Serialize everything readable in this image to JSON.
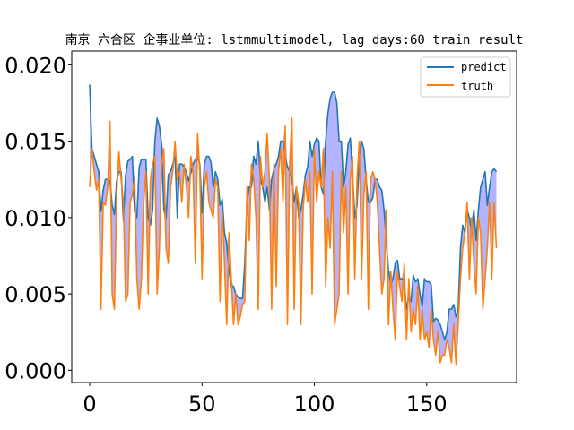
{
  "chart_data": {
    "type": "line",
    "title": "南京_六合区_企事业单位: lstmmultimodel, lag days:60 train_result",
    "xlabel": "",
    "ylabel": "",
    "xlim": [
      -8,
      190
    ],
    "ylim": [
      -0.0008,
      0.0209
    ],
    "x_ticks": [
      0,
      50,
      100,
      150
    ],
    "x_tick_labels": [
      "0",
      "50",
      "100",
      "150"
    ],
    "y_ticks": [
      0.0,
      0.005,
      0.01,
      0.015,
      0.02
    ],
    "y_tick_labels": [
      "0.000",
      "0.005",
      "0.010",
      "0.015",
      "0.020"
    ],
    "legend_position": "top-right",
    "band_color": "#8080ff",
    "series": [
      {
        "name": "predict",
        "color": "#1f77b4",
        "values": [
          0.0187,
          0.0145,
          0.014,
          0.0135,
          0.013,
          0.0104,
          0.0118,
          0.0125,
          0.0125,
          0.0124,
          0.0108,
          0.0102,
          0.0124,
          0.013,
          0.013,
          0.0098,
          0.0128,
          0.0137,
          0.0138,
          0.014,
          0.0104,
          0.01,
          0.0133,
          0.0138,
          0.0138,
          0.0138,
          0.01,
          0.0095,
          0.0105,
          0.015,
          0.0165,
          0.016,
          0.0148,
          0.0105,
          0.01,
          0.0128,
          0.013,
          0.0135,
          0.014,
          0.01,
          0.0135,
          0.0135,
          0.0133,
          0.013,
          0.0124,
          0.0129,
          0.0135,
          0.0138,
          0.014,
          0.0135,
          0.0103,
          0.0135,
          0.014,
          0.014,
          0.0136,
          0.012,
          0.013,
          0.0125,
          0.0108,
          0.0112,
          0.009,
          0.0083,
          0.0065,
          0.0055,
          0.0055,
          0.005,
          0.0048,
          0.0047,
          0.0047,
          0.007,
          0.011,
          0.012,
          0.012,
          0.014,
          0.0135,
          0.015,
          0.0125,
          0.012,
          0.011,
          0.012,
          0.0105,
          0.0125,
          0.0132,
          0.0135,
          0.014,
          0.015,
          0.015,
          0.014,
          0.0133,
          0.013,
          0.0125,
          0.011,
          0.012,
          0.01,
          0.0105,
          0.0115,
          0.0128,
          0.0133,
          0.015,
          0.014,
          0.0148,
          0.0152,
          0.015,
          0.012,
          0.0115,
          0.015,
          0.0168,
          0.0178,
          0.0182,
          0.0182,
          0.0175,
          0.015,
          0.015,
          0.012,
          0.013,
          0.0148,
          0.0152,
          0.0128,
          0.01,
          0.0108,
          0.014,
          0.015,
          0.0145,
          0.0125,
          0.011,
          0.011,
          0.0113,
          0.0125,
          0.0125,
          0.012,
          0.0118,
          0.0105,
          0.0085,
          0.0065,
          0.0056,
          0.006,
          0.007,
          0.0072,
          0.006,
          0.006,
          0.0058,
          0.004,
          0.0048,
          0.0045,
          0.0062,
          0.0058,
          0.006,
          0.005,
          0.0042,
          0.006,
          0.0058,
          0.0058,
          0.0056,
          0.0032,
          0.0034,
          0.0033,
          0.003,
          0.0025,
          0.002,
          0.0025,
          0.004,
          0.004,
          0.0043,
          0.0035,
          0.004,
          0.008,
          0.0095,
          0.009,
          0.0105,
          0.01,
          0.009,
          0.0105,
          0.0085,
          0.0105,
          0.012,
          0.0125,
          0.013,
          0.0108,
          0.012,
          0.013,
          0.0132,
          0.013
        ]
      },
      {
        "name": "truth",
        "color": "#ff7f0e",
        "values": [
          0.012,
          0.0145,
          0.013,
          0.0118,
          0.0125,
          0.004,
          0.011,
          0.0108,
          0.012,
          0.0163,
          0.005,
          0.004,
          0.0115,
          0.0143,
          0.0125,
          0.011,
          0.0045,
          0.005,
          0.011,
          0.0115,
          0.0125,
          0.006,
          0.004,
          0.006,
          0.011,
          0.013,
          0.005,
          0.0125,
          0.0135,
          0.014,
          0.005,
          0.008,
          0.0135,
          0.0145,
          0.008,
          0.007,
          0.012,
          0.013,
          0.015,
          0.0125,
          0.013,
          0.011,
          0.0135,
          0.012,
          0.01,
          0.014,
          0.013,
          0.007,
          0.0155,
          0.013,
          0.006,
          0.012,
          0.013,
          0.011,
          0.0105,
          0.01,
          0.0125,
          0.012,
          0.0045,
          0.0105,
          0.007,
          0.003,
          0.009,
          0.006,
          0.003,
          0.005,
          0.003,
          0.0035,
          0.0043,
          0.0045,
          0.012,
          0.0085,
          0.0135,
          0.0125,
          0.01,
          0.004,
          0.014,
          0.012,
          0.013,
          0.0155,
          0.0125,
          0.004,
          0.0135,
          0.0055,
          0.013,
          0.0145,
          0.011,
          0.016,
          0.003,
          0.0135,
          0.0165,
          0.004,
          0.012,
          0.011,
          0.003,
          0.0105,
          0.0125,
          0.011,
          0.013,
          0.005,
          0.0145,
          0.011,
          0.013,
          0.012,
          0.0145,
          0.0055,
          0.01,
          0.008,
          0.013,
          0.003,
          0.004,
          0.005,
          0.013,
          0.009,
          0.012,
          0.005,
          0.0125,
          0.014,
          0.006,
          0.0125,
          0.015,
          0.006,
          0.0115,
          0.013,
          0.004,
          0.0125,
          0.013,
          0.0125,
          0.011,
          0.008,
          0.005,
          0.006,
          0.0105,
          0.003,
          0.0065,
          0.004,
          0.002,
          0.0065,
          0.0055,
          0.0045,
          0.007,
          0.002,
          0.006,
          0.0025,
          0.004,
          0.003,
          0.0055,
          0.002,
          0.004,
          0.002,
          0.0025,
          0.0015,
          0.004,
          0.002,
          0.001,
          0.0025,
          0.0005,
          0.001,
          0.001,
          0.002,
          0.0015,
          0.0005,
          0.003,
          0.0004,
          0.003,
          0.006,
          0.008,
          0.009,
          0.011,
          0.006,
          0.01,
          0.007,
          0.005,
          0.01,
          0.009,
          0.004,
          0.006,
          0.008,
          0.011,
          0.006,
          0.011,
          0.008
        ]
      }
    ]
  }
}
